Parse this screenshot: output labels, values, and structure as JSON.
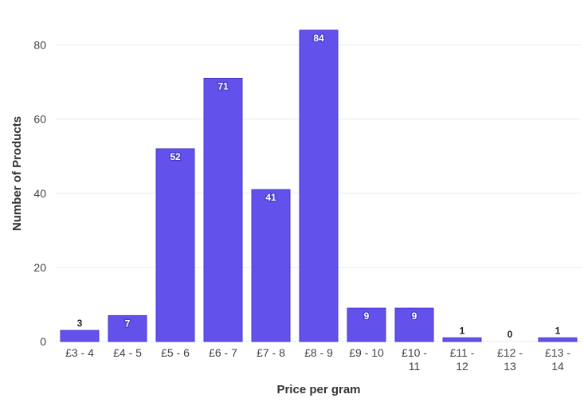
{
  "chart_data": {
    "type": "bar",
    "title": "",
    "xlabel": "Price per gram",
    "ylabel": "Number of Products",
    "categories": [
      [
        "£3 - 4"
      ],
      [
        "£4 - 5"
      ],
      [
        "£5 - 6"
      ],
      [
        "£6 - 7"
      ],
      [
        "£7 - 8"
      ],
      [
        "£8 - 9"
      ],
      [
        "£9 - 10"
      ],
      [
        "£10 -",
        "11"
      ],
      [
        "£11 -",
        "12"
      ],
      [
        "£12 -",
        "13"
      ],
      [
        "£13 -",
        "14"
      ]
    ],
    "values": [
      3,
      7,
      52,
      71,
      41,
      84,
      9,
      9,
      1,
      0,
      1
    ],
    "ylim": [
      0,
      90
    ],
    "yticks": [
      0,
      20,
      40,
      60,
      80
    ],
    "grid": true,
    "legend": "none",
    "colors": {
      "bar": "#6251EA",
      "bar_border": "#4A3ACB",
      "grid": "#EBEBEB",
      "label_inside": "#FFFFFF",
      "label_outside": "#222222"
    }
  }
}
